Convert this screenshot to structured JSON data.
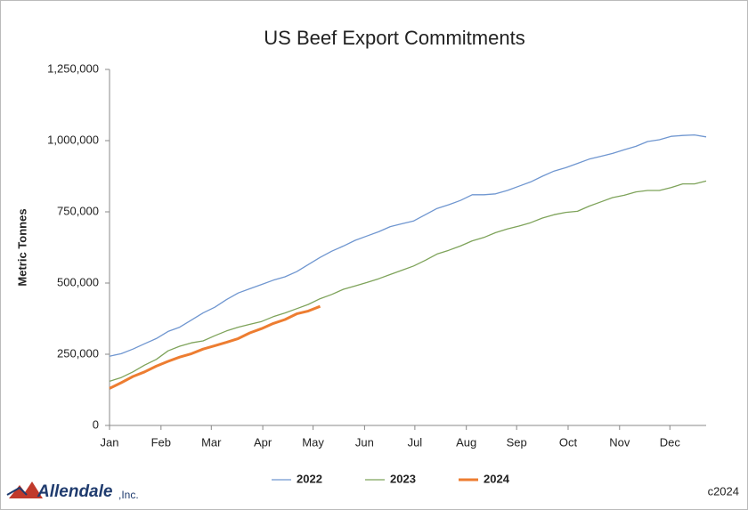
{
  "chart_data": {
    "type": "line",
    "title": "US Beef Export Commitments",
    "y_label": "Metric Tonnes",
    "logo_text": "Allendale",
    "logo_suffix": ",Inc.",
    "copyright": "c2024",
    "x": [
      0,
      1,
      2,
      3,
      4,
      5,
      6,
      7,
      8,
      9,
      10,
      11,
      12,
      13,
      14,
      15,
      16,
      17,
      18,
      19,
      20,
      21,
      22,
      23,
      24,
      25,
      26,
      27,
      28,
      29,
      30,
      31,
      32,
      33,
      34,
      35,
      36,
      37,
      38,
      39,
      40,
      41,
      42,
      43,
      44,
      45,
      46,
      47,
      48,
      49,
      50,
      51
    ],
    "xlim": [
      0,
      51
    ],
    "xticks": [
      {
        "value": 0,
        "label": "Jan"
      },
      {
        "value": 4.4,
        "label": "Feb"
      },
      {
        "value": 8.7,
        "label": "Mar"
      },
      {
        "value": 13.1,
        "label": "Apr"
      },
      {
        "value": 17.4,
        "label": "May"
      },
      {
        "value": 21.8,
        "label": "Jun"
      },
      {
        "value": 26.1,
        "label": "Jul"
      },
      {
        "value": 30.5,
        "label": "Aug"
      },
      {
        "value": 34.8,
        "label": "Sep"
      },
      {
        "value": 39.2,
        "label": "Oct"
      },
      {
        "value": 43.6,
        "label": "Nov"
      },
      {
        "value": 47.9,
        "label": "Dec"
      }
    ],
    "ylim": [
      0,
      1250000
    ],
    "yticks": [
      0,
      {
        "value": 250000,
        "label": "250,000"
      },
      {
        "value": 500000,
        "label": "500,000"
      },
      {
        "value": 750000,
        "label": "750,000"
      },
      {
        "value": 1000000,
        "label": "1,000,000"
      },
      {
        "value": 1250000,
        "label": "1,250,000"
      }
    ],
    "grid": false,
    "legend": "bottom",
    "series": [
      {
        "name": "2022",
        "color": "#6f96d0",
        "line_width": 1.3,
        "values": [
          243000,
          252000,
          268000,
          287000,
          305000,
          330000,
          345000,
          370000,
          395000,
          415000,
          442000,
          465000,
          480000,
          495000,
          510000,
          522000,
          540000,
          565000,
          590000,
          612000,
          630000,
          650000,
          665000,
          680000,
          698000,
          708000,
          718000,
          740000,
          762000,
          775000,
          790000,
          810000,
          810000,
          813000,
          825000,
          840000,
          855000,
          875000,
          893000,
          905000,
          920000,
          935000,
          945000,
          955000,
          968000,
          980000,
          997000,
          1003000,
          1015000,
          1018000,
          1020000,
          1013000
        ]
      },
      {
        "name": "2023",
        "color": "#7ea35a",
        "line_width": 1.3,
        "values": [
          155000,
          168000,
          188000,
          212000,
          232000,
          262000,
          278000,
          290000,
          297000,
          315000,
          332000,
          345000,
          355000,
          365000,
          382000,
          395000,
          410000,
          425000,
          445000,
          460000,
          478000,
          490000,
          502000,
          515000,
          530000,
          545000,
          560000,
          580000,
          602000,
          615000,
          630000,
          648000,
          660000,
          677000,
          690000,
          700000,
          712000,
          728000,
          740000,
          748000,
          752000,
          770000,
          785000,
          800000,
          808000,
          820000,
          825000,
          825000,
          835000,
          848000,
          848000,
          858000
        ]
      },
      {
        "name": "2024",
        "color": "#ed7d31",
        "line_width": 3,
        "values": [
          130000,
          150000,
          172000,
          188000,
          208000,
          225000,
          240000,
          252000,
          268000,
          280000,
          292000,
          305000,
          325000,
          340000,
          358000,
          372000,
          392000,
          402000,
          418000,
          null,
          null,
          null,
          null,
          null,
          null,
          null,
          null,
          null,
          null,
          null,
          null,
          null,
          null,
          null,
          null,
          null,
          null,
          null,
          null,
          null,
          null,
          null,
          null,
          null,
          null,
          null,
          null,
          null,
          null,
          null,
          null,
          null
        ]
      }
    ]
  }
}
